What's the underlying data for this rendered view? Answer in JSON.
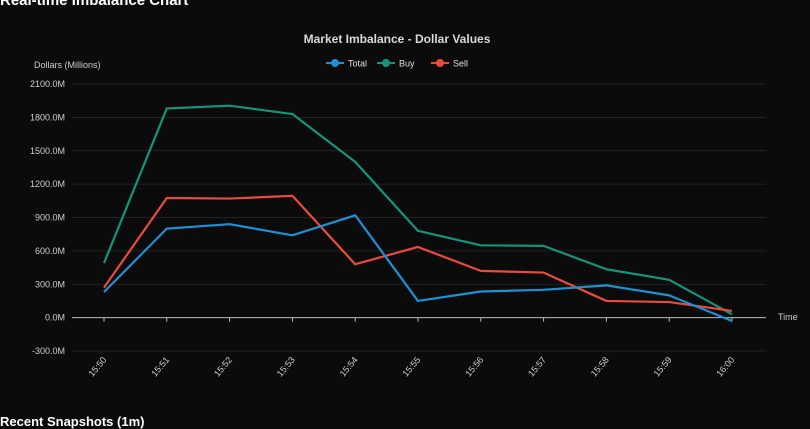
{
  "page": {
    "chart_heading": "Real-time Imbalance Chart",
    "snapshots_heading": "Recent Snapshots (1m)"
  },
  "colors": {
    "background": "#0b0b0b",
    "grid": "#2a2a2a",
    "axis": "#bbbbbb",
    "total": "#1e90d6",
    "buy": "#14957a",
    "sell": "#ea4b3c"
  },
  "chart_data": {
    "type": "line",
    "title": "Market Imbalance - Dollar Values",
    "ylabel": "Dollars (Millions)",
    "xlabel": "Time",
    "ylim": [
      -300,
      2100
    ],
    "yticks": [
      "2100.0M",
      "1800.0M",
      "1500.0M",
      "1200.0M",
      "900.0M",
      "600.0M",
      "300.0M",
      "0.0M",
      "-300.0M"
    ],
    "ytick_values": [
      2100,
      1800,
      1500,
      1200,
      900,
      600,
      300,
      0,
      -300
    ],
    "categories": [
      "15:50",
      "15:51",
      "15:52",
      "15:53",
      "15:54",
      "15:55",
      "15:56",
      "15:57",
      "15:58",
      "15:59",
      "16:00"
    ],
    "grid": true,
    "legend_position": "top-center",
    "series": [
      {
        "name": "Total",
        "color": "#1e90d6",
        "values": [
          230,
          800,
          840,
          740,
          920,
          150,
          235,
          250,
          290,
          200,
          -30
        ]
      },
      {
        "name": "Buy",
        "color": "#14957a",
        "values": [
          490,
          1880,
          1905,
          1830,
          1400,
          780,
          650,
          645,
          435,
          340,
          30
        ]
      },
      {
        "name": "Sell",
        "color": "#ea4b3c",
        "values": [
          270,
          1075,
          1070,
          1095,
          480,
          635,
          420,
          405,
          150,
          140,
          60
        ]
      }
    ]
  }
}
